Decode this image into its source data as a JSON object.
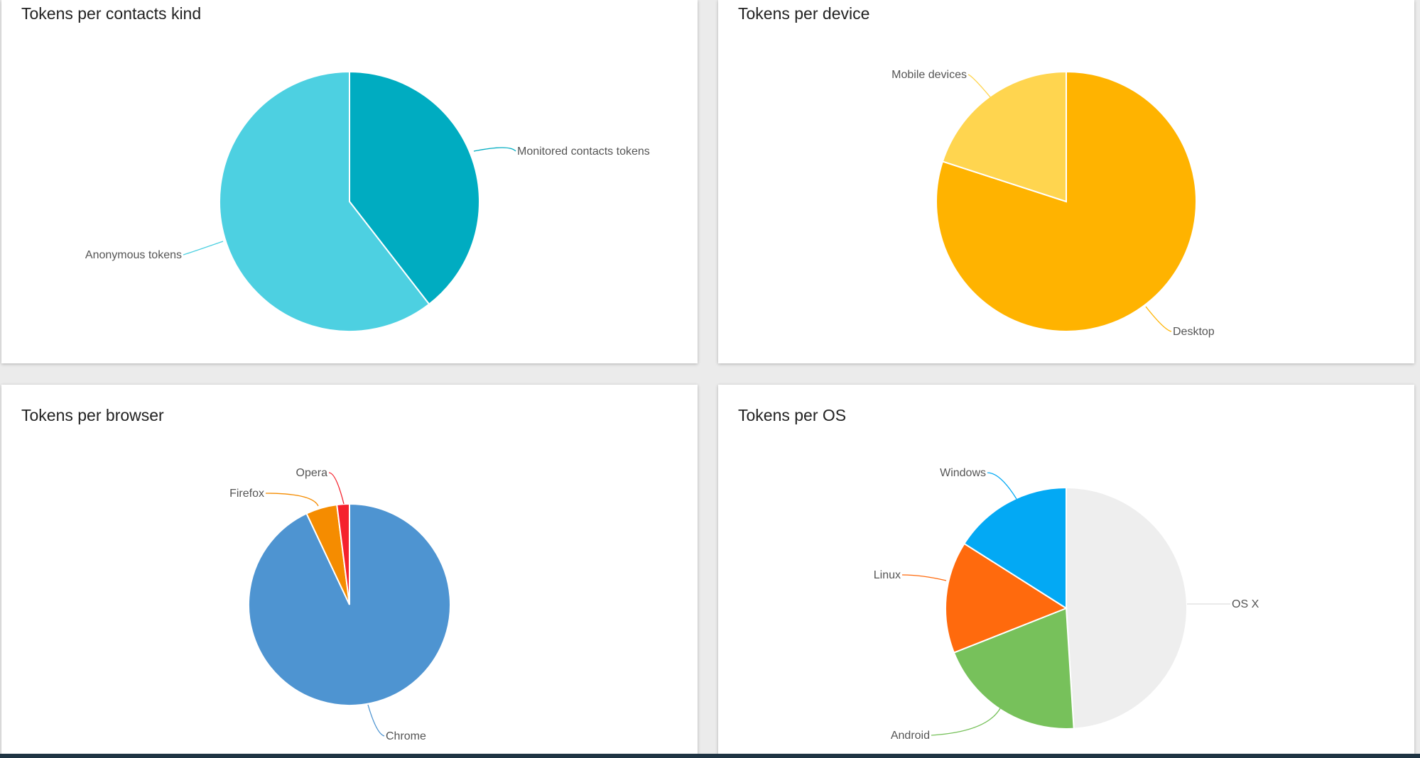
{
  "chart_data": [
    {
      "type": "pie",
      "title": "Tokens per contacts kind",
      "slices": [
        {
          "label": "Monitored contacts tokens",
          "value": 39.5,
          "color": "#00acc1"
        },
        {
          "label": "Anonymous tokens",
          "value": 60.5,
          "color": "#4dd0e1"
        }
      ]
    },
    {
      "type": "pie",
      "title": "Tokens per device",
      "slices": [
        {
          "label": "Desktop",
          "value": 80,
          "color": "#ffb300"
        },
        {
          "label": "Mobile devices",
          "value": 20,
          "color": "#ffd54f"
        }
      ]
    },
    {
      "type": "pie",
      "title": "Tokens per browser",
      "slices": [
        {
          "label": "Chrome",
          "value": 93,
          "color": "#4e94d1"
        },
        {
          "label": "Firefox",
          "value": 5,
          "color": "#f58c00"
        },
        {
          "label": "Opera",
          "value": 2,
          "color": "#f5222d"
        }
      ]
    },
    {
      "type": "pie",
      "title": "Tokens per OS",
      "slices": [
        {
          "label": "OS X",
          "value": 49,
          "color": "#eeeeee"
        },
        {
          "label": "Android",
          "value": 20,
          "color": "#77c15b"
        },
        {
          "label": "Linux",
          "value": 15,
          "color": "#ff6a0d"
        },
        {
          "label": "Windows",
          "value": 16,
          "color": "#03a9f4"
        }
      ]
    }
  ]
}
